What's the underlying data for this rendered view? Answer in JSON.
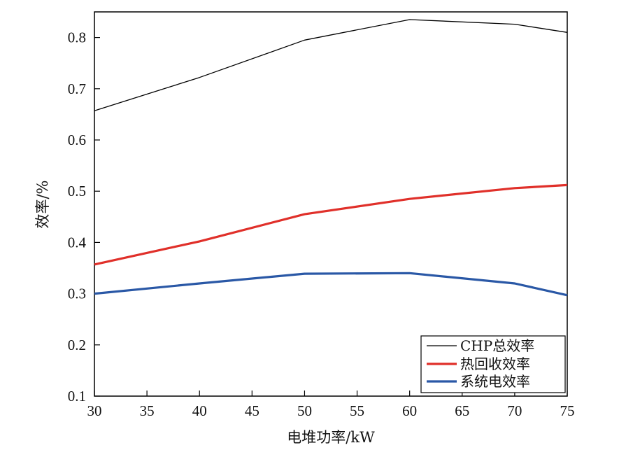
{
  "chart_data": {
    "type": "line",
    "xlabel": "电堆功率/kW",
    "ylabel": "效率/%",
    "x": [
      30,
      40,
      50,
      60,
      70,
      75
    ],
    "xlim": [
      30,
      75
    ],
    "ylim": [
      0.1,
      0.85
    ],
    "xticks": [
      30,
      35,
      40,
      45,
      50,
      55,
      60,
      65,
      70,
      75
    ],
    "yticks": [
      0.1,
      0.2,
      0.3,
      0.4,
      0.5,
      0.6,
      0.7,
      0.8
    ],
    "xtick_labels": [
      "30",
      "35",
      "40",
      "45",
      "50",
      "55",
      "60",
      "65",
      "70",
      "75"
    ],
    "ytick_labels": [
      "0.1",
      "0.2",
      "0.3",
      "0.4",
      "0.5",
      "0.6",
      "0.7",
      "0.8"
    ],
    "grid": false,
    "legend_position": "bottom-right",
    "series": [
      {
        "name": "CHP总效率",
        "color": "#000000",
        "values": [
          0.657,
          0.722,
          0.795,
          0.835,
          0.826,
          0.81
        ]
      },
      {
        "name": "热回收效率",
        "color": "#e0302a",
        "values": [
          0.357,
          0.402,
          0.455,
          0.485,
          0.506,
          0.512
        ]
      },
      {
        "name": "系统电效率",
        "color": "#2a58a6",
        "values": [
          0.3,
          0.32,
          0.339,
          0.34,
          0.32,
          0.297
        ]
      }
    ]
  }
}
